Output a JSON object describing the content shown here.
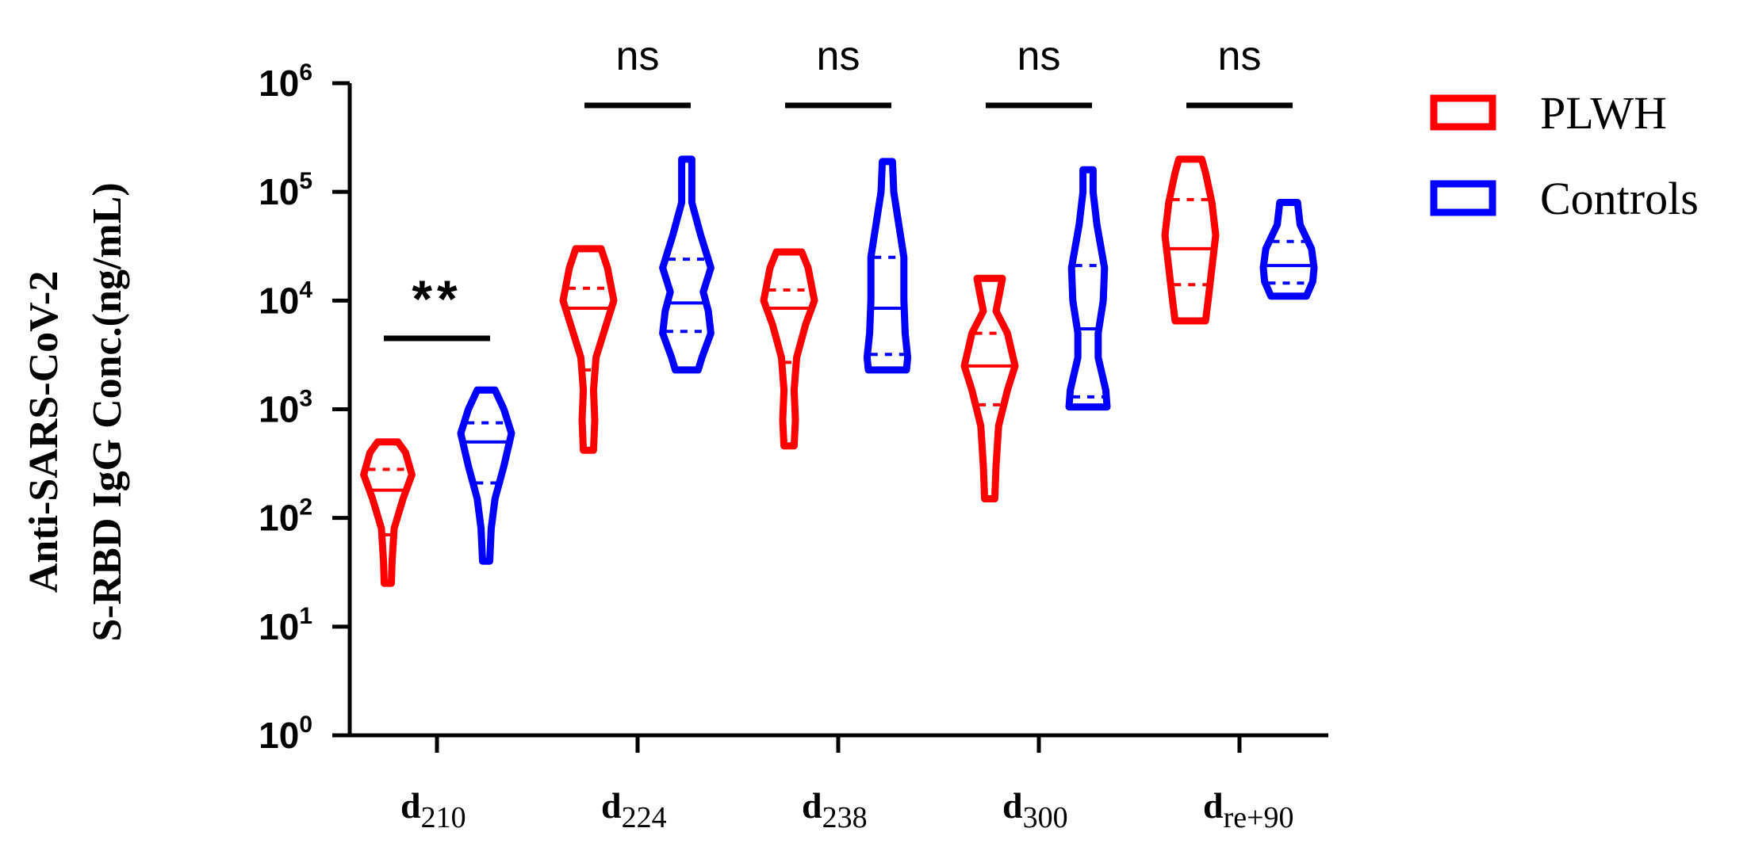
{
  "chart_data": {
    "type": "violin",
    "ylabel_lines": [
      "Anti-SARS-CoV-2",
      "S-RBD IgG Conc.(ng/mL)"
    ],
    "yscale": "log",
    "ylim": [
      1,
      1000000
    ],
    "yticks": [
      {
        "base": "10",
        "exp": "0",
        "value": 1
      },
      {
        "base": "10",
        "exp": "1",
        "value": 10
      },
      {
        "base": "10",
        "exp": "2",
        "value": 100
      },
      {
        "base": "10",
        "exp": "3",
        "value": 1000
      },
      {
        "base": "10",
        "exp": "4",
        "value": 10000
      },
      {
        "base": "10",
        "exp": "5",
        "value": 100000
      },
      {
        "base": "10",
        "exp": "6",
        "value": 1000000
      }
    ],
    "categories": [
      {
        "main": "d",
        "sub": "210",
        "significance": "**"
      },
      {
        "main": "d",
        "sub": "224",
        "significance": "ns"
      },
      {
        "main": "d",
        "sub": "238",
        "significance": "ns"
      },
      {
        "main": "d",
        "sub": "300",
        "significance": "ns"
      },
      {
        "main": "d",
        "sub": "re+90",
        "significance": "ns"
      }
    ],
    "series": [
      {
        "name": "PLWH",
        "color": "#ff0000",
        "violins": [
          {
            "profile": [
              [
                25,
                0.14
              ],
              [
                40,
                0.17
              ],
              [
                80,
                0.25
              ],
              [
                150,
                0.6
              ],
              [
                250,
                0.95
              ],
              [
                400,
                0.7
              ],
              [
                500,
                0.4
              ]
            ],
            "median": 180,
            "q1": 70,
            "q3": 280
          },
          {
            "profile": [
              [
                420,
                0.2
              ],
              [
                800,
                0.25
              ],
              [
                1500,
                0.2
              ],
              [
                3000,
                0.3
              ],
              [
                6000,
                0.7
              ],
              [
                10000,
                1.0
              ],
              [
                20000,
                0.75
              ],
              [
                30000,
                0.5
              ]
            ],
            "median": 8500,
            "q1": 2300,
            "q3": 13000
          },
          {
            "profile": [
              [
                460,
                0.2
              ],
              [
                800,
                0.25
              ],
              [
                1500,
                0.2
              ],
              [
                3000,
                0.3
              ],
              [
                6000,
                0.65
              ],
              [
                10000,
                1.0
              ],
              [
                20000,
                0.75
              ],
              [
                28000,
                0.5
              ]
            ],
            "median": 8500,
            "q1": 2700,
            "q3": 12500
          },
          {
            "profile": [
              [
                150,
                0.2
              ],
              [
                300,
                0.25
              ],
              [
                700,
                0.35
              ],
              [
                1500,
                0.7
              ],
              [
                2500,
                1.0
              ],
              [
                5000,
                0.7
              ],
              [
                8000,
                0.25
              ],
              [
                12000,
                0.4
              ],
              [
                16000,
                0.5
              ]
            ],
            "median": 2500,
            "q1": 1100,
            "q3": 5000
          },
          {
            "profile": [
              [
                6500,
                0.6
              ],
              [
                10000,
                0.7
              ],
              [
                20000,
                0.85
              ],
              [
                40000,
                1.0
              ],
              [
                80000,
                0.85
              ],
              [
                150000,
                0.6
              ],
              [
                200000,
                0.45
              ]
            ],
            "median": 30000,
            "q1": 14000,
            "q3": 85000
          }
        ]
      },
      {
        "name": "Controls",
        "color": "#0000ff",
        "violins": [
          {
            "profile": [
              [
                40,
                0.14
              ],
              [
                80,
                0.2
              ],
              [
                150,
                0.35
              ],
              [
                300,
                0.7
              ],
              [
                600,
                1.0
              ],
              [
                1000,
                0.7
              ],
              [
                1500,
                0.35
              ]
            ],
            "median": 500,
            "q1": 210,
            "q3": 750
          },
          {
            "profile": [
              [
                2300,
                0.45
              ],
              [
                3000,
                0.6
              ],
              [
                5000,
                0.95
              ],
              [
                8000,
                0.85
              ],
              [
                12000,
                0.65
              ],
              [
                20000,
                0.95
              ],
              [
                40000,
                0.55
              ],
              [
                80000,
                0.2
              ],
              [
                200000,
                0.2
              ]
            ],
            "median": 9500,
            "q1": 5200,
            "q3": 24000
          },
          {
            "profile": [
              [
                2300,
                0.75
              ],
              [
                3000,
                0.8
              ],
              [
                5000,
                0.7
              ],
              [
                10000,
                0.65
              ],
              [
                25000,
                0.65
              ],
              [
                50000,
                0.45
              ],
              [
                100000,
                0.25
              ],
              [
                190000,
                0.2
              ]
            ],
            "median": 8500,
            "q1": 3200,
            "q3": 25000
          },
          {
            "profile": [
              [
                1050,
                0.75
              ],
              [
                1500,
                0.7
              ],
              [
                3000,
                0.4
              ],
              [
                5000,
                0.4
              ],
              [
                10000,
                0.6
              ],
              [
                20000,
                0.65
              ],
              [
                50000,
                0.35
              ],
              [
                100000,
                0.2
              ],
              [
                160000,
                0.2
              ]
            ],
            "median": 5500,
            "q1": 1300,
            "q3": 21000
          },
          {
            "profile": [
              [
                11000,
                0.7
              ],
              [
                15000,
                0.95
              ],
              [
                20000,
                1.0
              ],
              [
                30000,
                0.9
              ],
              [
                50000,
                0.45
              ],
              [
                80000,
                0.35
              ]
            ],
            "median": 21000,
            "q1": 14500,
            "q3": 35000
          }
        ]
      }
    ],
    "legend_position": "top-right"
  }
}
